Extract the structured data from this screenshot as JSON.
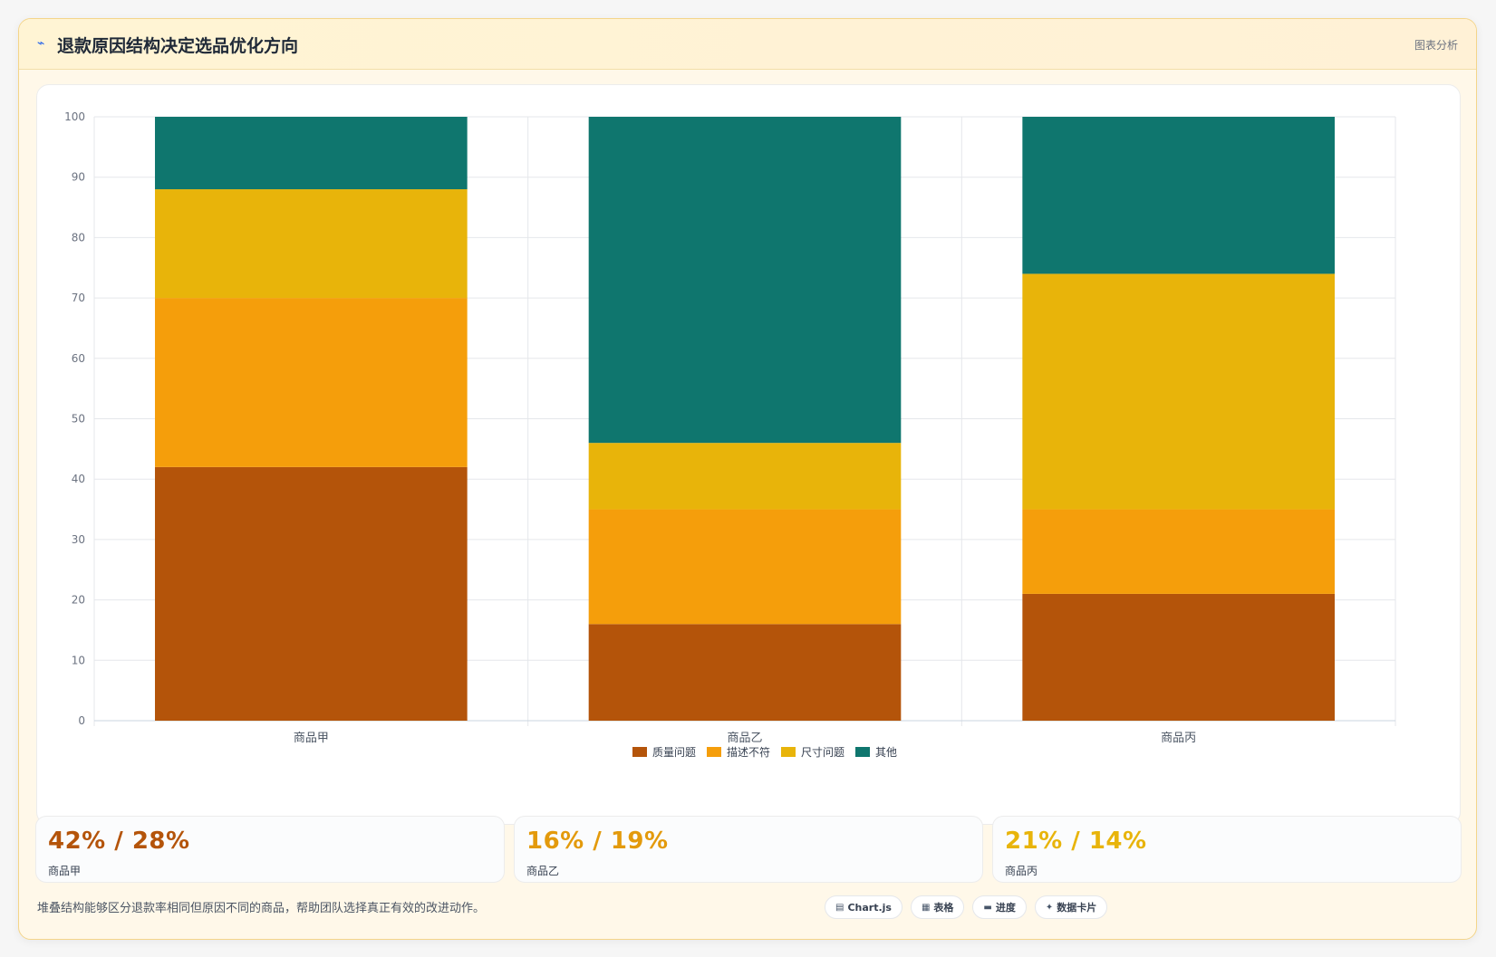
{
  "header": {
    "icon": "chart-icon",
    "title": "退款原因结构决定选品优化方向",
    "tag": "图表分析"
  },
  "chart_data": {
    "type": "bar",
    "stacked": true,
    "categories": [
      "商品甲",
      "商品乙",
      "商品丙"
    ],
    "series": [
      {
        "name": "质量问题",
        "color": "#b4540a",
        "values": [
          42,
          16,
          21
        ]
      },
      {
        "name": "描述不符",
        "color": "#f59e0b",
        "values": [
          28,
          19,
          14
        ]
      },
      {
        "name": "尺寸问题",
        "color": "#e8b40a",
        "values": [
          18,
          11,
          39
        ]
      },
      {
        "name": "其他",
        "color": "#0f766e",
        "values": [
          12,
          54,
          26
        ]
      }
    ],
    "ylim": [
      0,
      100
    ],
    "yticks": [
      0,
      10,
      20,
      30,
      40,
      50,
      60,
      70,
      80,
      90,
      100
    ],
    "grid": true,
    "legend": "bottom"
  },
  "stats": [
    {
      "value": "42% / 28%",
      "label": "商品甲",
      "color": "#b4540a"
    },
    {
      "value": "16% / 19%",
      "label": "商品乙",
      "color": "#e39a0c"
    },
    {
      "value": "21% / 14%",
      "label": "商品丙",
      "color": "#e8b40a"
    }
  ],
  "note": "堆叠结构能够区分退款率相同但原因不同的商品，帮助团队选择真正有效的改进动作。",
  "chips": [
    {
      "icon": "chart-icon",
      "glyph": "▤",
      "label": "Chart.js"
    },
    {
      "icon": "table-icon",
      "glyph": "▦",
      "label": "表格"
    },
    {
      "icon": "progress-icon",
      "glyph": "▬",
      "label": "进度"
    },
    {
      "icon": "card-icon",
      "glyph": "✦",
      "label": "数据卡片"
    }
  ]
}
